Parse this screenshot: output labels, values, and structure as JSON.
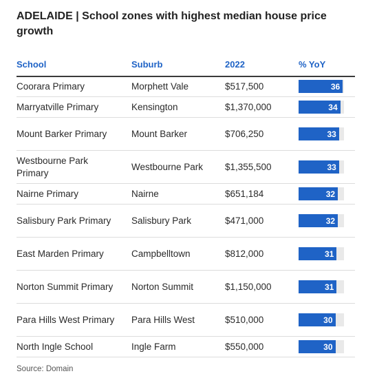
{
  "chart_data": {
    "type": "table",
    "title": "ADELAIDE | School zones with highest median house price growth",
    "columns": [
      "School",
      "Suburb",
      "2022",
      "% YoY"
    ],
    "rows": [
      {
        "school": "Coorara Primary",
        "suburb": "Morphett Vale",
        "price": "$517,500",
        "yoy": 36
      },
      {
        "school": "Marryatville Primary",
        "suburb": "Kensington",
        "price": "$1,370,000",
        "yoy": 34
      },
      {
        "school": "Mount Barker Primary",
        "suburb": "Mount Barker",
        "price": "$706,250",
        "yoy": 33
      },
      {
        "school": "Westbourne Park Primary",
        "suburb": "Westbourne Park",
        "price": "$1,355,500",
        "yoy": 33
      },
      {
        "school": "Nairne Primary",
        "suburb": "Nairne",
        "price": "$651,184",
        "yoy": 32
      },
      {
        "school": "Salisbury Park Primary",
        "suburb": "Salisbury Park",
        "price": "$471,000",
        "yoy": 32
      },
      {
        "school": "East Marden Primary",
        "suburb": "Campbelltown",
        "price": "$812,000",
        "yoy": 31
      },
      {
        "school": "Norton Summit Primary",
        "suburb": "Norton Summit",
        "price": "$1,150,000",
        "yoy": 31
      },
      {
        "school": "Para Hills West Primary",
        "suburb": "Para Hills West",
        "price": "$510,000",
        "yoy": 30
      },
      {
        "school": "North Ingle School",
        "suburb": "Ingle Farm",
        "price": "$550,000",
        "yoy": 30
      }
    ],
    "bar_max": 37,
    "source": "Source: Domain"
  },
  "colors": {
    "accent": "#1f63c6",
    "bar_track": "#e9e9e9",
    "header_text": "#1f63c6",
    "rule": "#3a3a3a"
  }
}
